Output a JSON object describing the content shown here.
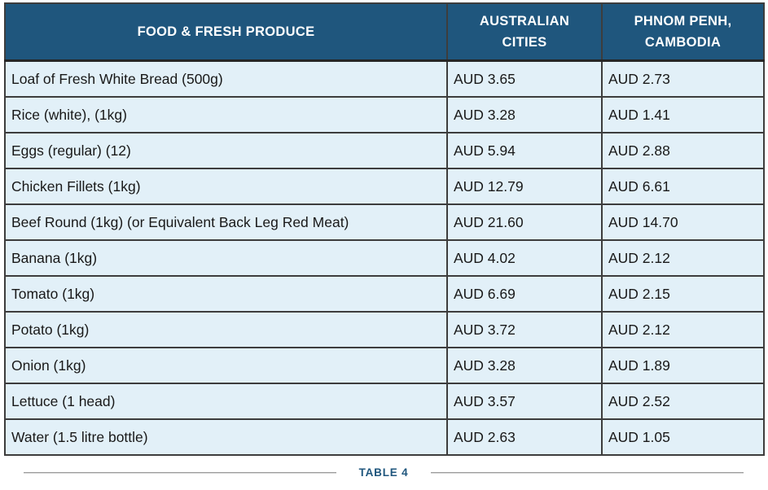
{
  "table": {
    "columns": [
      {
        "label": "FOOD & FRESH PRODUCE"
      },
      {
        "label": "AUSTRALIAN CITIES"
      },
      {
        "label": "PHNOM PENH, CAMBODIA"
      }
    ],
    "rows": [
      {
        "item": "Loaf of Fresh White Bread (500g)",
        "australian_cities": "AUD 3.65",
        "phnom_penh": "AUD 2.73"
      },
      {
        "item": "Rice (white), (1kg)",
        "australian_cities": "AUD 3.28",
        "phnom_penh": "AUD 1.41"
      },
      {
        "item": "Eggs (regular) (12)",
        "australian_cities": "AUD 5.94",
        "phnom_penh": "AUD 2.88"
      },
      {
        "item": "Chicken Fillets (1kg)",
        "australian_cities": "AUD 12.79",
        "phnom_penh": "AUD 6.61"
      },
      {
        "item": "Beef Round (1kg) (or Equivalent Back Leg Red Meat)",
        "australian_cities": "AUD 21.60",
        "phnom_penh": "AUD 14.70"
      },
      {
        "item": "Banana (1kg)",
        "australian_cities": "AUD 4.02",
        "phnom_penh": "AUD 2.12"
      },
      {
        "item": "Tomato (1kg)",
        "australian_cities": "AUD 6.69",
        "phnom_penh": "AUD 2.15"
      },
      {
        "item": "Potato (1kg)",
        "australian_cities": "AUD 3.72",
        "phnom_penh": "AUD 2.12"
      },
      {
        "item": "Onion (1kg)",
        "australian_cities": "AUD 3.28",
        "phnom_penh": "AUD 1.89"
      },
      {
        "item": "Lettuce (1 head)",
        "australian_cities": "AUD 3.57",
        "phnom_penh": "AUD 2.52"
      },
      {
        "item": "Water (1.5 litre bottle)",
        "australian_cities": "AUD 2.63",
        "phnom_penh": "AUD 1.05"
      }
    ],
    "currency": "AUD"
  },
  "caption": {
    "label": "TABLE 4"
  },
  "colors": {
    "header_bg": "#1F567D",
    "header_text": "#FFFFFF",
    "row_bg": "#E2F0F8",
    "cell_border": "#3D3D3D",
    "outer_border": "#1D2A33",
    "caption_text": "#1F567D",
    "caption_line": "#9B9B9B"
  }
}
